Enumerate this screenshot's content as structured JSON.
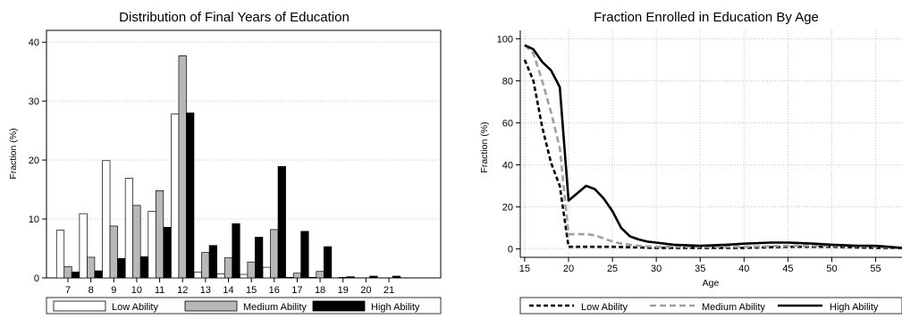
{
  "chart_data": [
    {
      "type": "bar",
      "title": "Distribution of Final Years of Education",
      "xlabel": "",
      "ylabel": "Fraction (%)",
      "ylim": [
        0,
        42
      ],
      "yticks": [
        0,
        10,
        20,
        30,
        40
      ],
      "grid": "horizontal dotted",
      "legend_position": "bottom",
      "categories": [
        "7",
        "8",
        "9",
        "10",
        "11",
        "12",
        "13",
        "14",
        "15",
        "16",
        "17",
        "18",
        "19",
        "20",
        "21"
      ],
      "series": [
        {
          "name": "Low Ability",
          "color": "#ffffff",
          "values": [
            8.1,
            10.9,
            19.9,
            16.9,
            11.3,
            27.8,
            1.0,
            0.7,
            0.6,
            1.8,
            0.1,
            0.1,
            0.0,
            0.0,
            0.0
          ]
        },
        {
          "name": "Medium Ability",
          "color": "#b8b8b8",
          "values": [
            1.9,
            3.5,
            8.8,
            12.3,
            14.8,
            37.7,
            4.3,
            3.4,
            2.7,
            8.2,
            0.8,
            1.1,
            0.1,
            0.0,
            0.0
          ]
        },
        {
          "name": "High Ability",
          "color": "#000000",
          "values": [
            1.0,
            1.2,
            3.3,
            3.6,
            8.6,
            28.0,
            5.5,
            9.2,
            6.9,
            18.9,
            7.9,
            5.3,
            0.2,
            0.3,
            0.3
          ]
        }
      ]
    },
    {
      "type": "line",
      "title": "Fraction Enrolled in Education By Age",
      "xlabel": "Age",
      "ylabel": "Fraction (%)",
      "xlim": [
        14.5,
        58
      ],
      "ylim": [
        -4,
        104
      ],
      "xticks": [
        15,
        20,
        25,
        30,
        35,
        40,
        45,
        50,
        55
      ],
      "yticks": [
        0,
        20,
        40,
        60,
        80,
        100
      ],
      "grid": "both dotted",
      "legend_position": "bottom",
      "series": [
        {
          "name": "Low Ability",
          "color": "#000000",
          "dash": "short",
          "x": [
            15,
            16,
            17,
            18,
            19,
            20,
            22,
            25,
            30,
            35,
            40,
            45,
            50,
            55,
            58
          ],
          "y": [
            90,
            80,
            58,
            41,
            30,
            1,
            1,
            1,
            0.5,
            0.5,
            0.5,
            1,
            1,
            0.5,
            0.5
          ]
        },
        {
          "name": "Medium Ability",
          "color": "#a0a0a0",
          "dash": "long",
          "x": [
            15,
            16,
            17,
            18,
            19,
            20,
            22,
            23,
            24,
            25,
            26,
            27,
            28,
            30,
            35,
            40,
            45,
            50,
            55,
            58
          ],
          "y": [
            97,
            93,
            80,
            65,
            48,
            7,
            7,
            6.5,
            5,
            3.5,
            2.5,
            2,
            1.5,
            1,
            1,
            1,
            1.5,
            1.5,
            1,
            0.5
          ]
        },
        {
          "name": "High Ability",
          "color": "#000000",
          "dash": "solid",
          "x": [
            15,
            16,
            17,
            18,
            19,
            20,
            21,
            22,
            23,
            24,
            25,
            26,
            27,
            28,
            29,
            30,
            32,
            35,
            38,
            40,
            43,
            45,
            48,
            50,
            53,
            55,
            58
          ],
          "y": [
            97,
            95,
            89,
            85,
            77,
            23,
            26.5,
            30,
            28.5,
            24,
            18,
            10,
            6,
            4.5,
            3.5,
            3,
            2,
            1.5,
            2,
            2.5,
            3,
            3,
            2.5,
            2,
            1.5,
            1.5,
            0.5
          ]
        }
      ]
    }
  ]
}
